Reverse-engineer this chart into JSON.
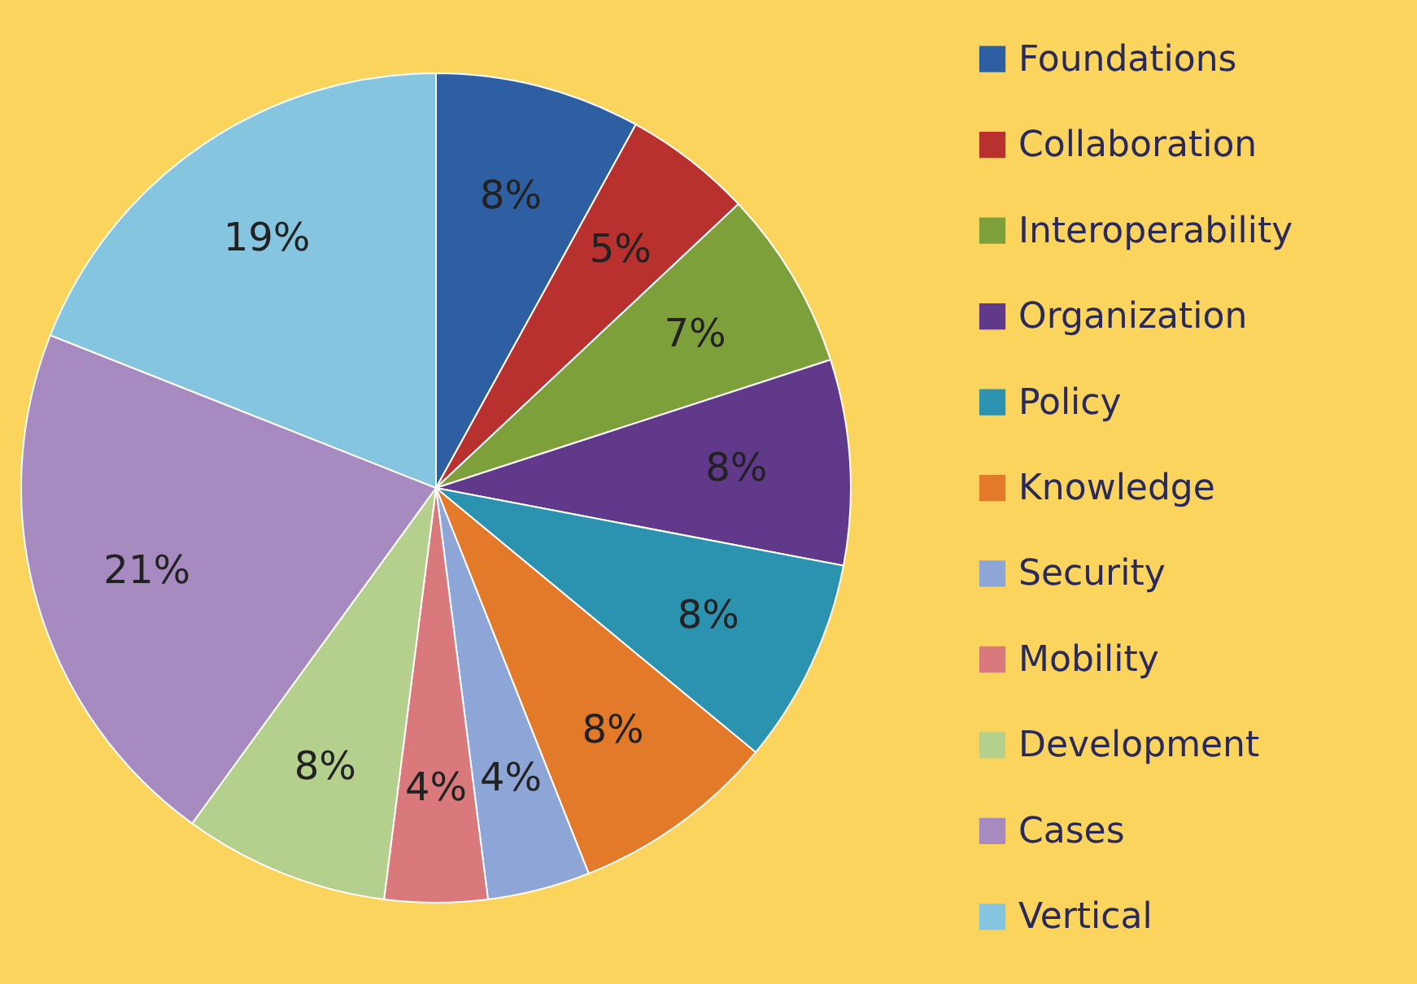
{
  "chart_data": {
    "type": "pie",
    "categories": [
      "Foundations",
      "Collaboration",
      "Interoperability",
      "Organization",
      "Policy",
      "Knowledge",
      "Security",
      "Mobility",
      "Development",
      "Cases",
      "Vertical"
    ],
    "values": [
      8,
      5,
      7,
      8,
      8,
      8,
      4,
      4,
      8,
      21,
      19
    ],
    "colors": [
      "#2e5fa3",
      "#b8312f",
      "#7ea03a",
      "#60398a",
      "#2b93b0",
      "#e37a2a",
      "#8ea5d8",
      "#d9797b",
      "#b5cf8c",
      "#a78bc0",
      "#86c5df"
    ],
    "value_labels": [
      "8%",
      "5%",
      "7%",
      "8%",
      "8%",
      "8%",
      "4%",
      "4%",
      "8%",
      "21%",
      "19%"
    ],
    "legend": "right"
  }
}
